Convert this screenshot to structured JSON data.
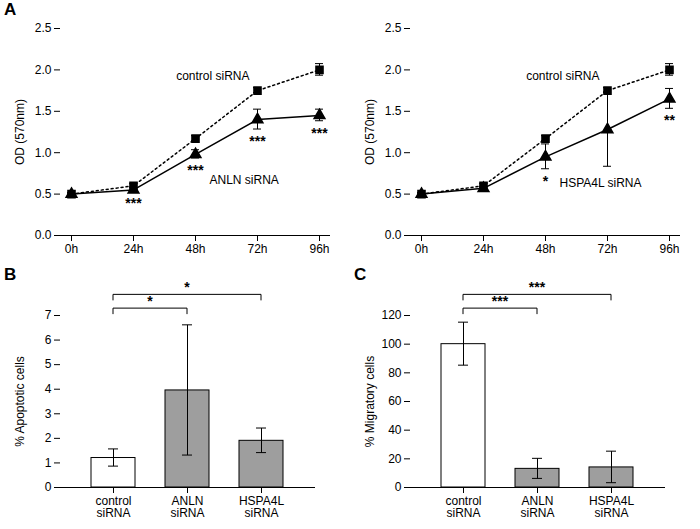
{
  "chart_data": [
    {
      "type": "line",
      "title": "A",
      "y_label": "OD (570nm)",
      "categories": [
        "0h",
        "24h",
        "48h",
        "72h",
        "96h"
      ],
      "ylim": [
        0,
        2.5
      ],
      "yticks": [
        {
          "value": 0,
          "label": "0.0"
        },
        0.5,
        {
          "value": 1,
          "label": "1.0"
        },
        1.5,
        {
          "value": 2,
          "label": "2.0"
        },
        2.5
      ],
      "series": [
        {
          "name": "control siRNA",
          "color": "#000000",
          "line_style": "dotted",
          "marker": "square",
          "values": [
            0.5,
            0.6,
            1.17,
            1.75,
            2.0
          ],
          "errors": [
            0.01,
            0.02,
            0.03,
            0.03,
            0.07
          ]
        },
        {
          "name": "ANLN siRNA",
          "color": "#000000",
          "line_style": "solid",
          "marker": "triangle",
          "values": [
            0.5,
            0.55,
            0.98,
            1.4,
            1.45
          ],
          "errors": [
            0.01,
            0.02,
            0.05,
            0.12,
            0.07
          ],
          "significance": [
            null,
            "***",
            "***",
            "***",
            "***"
          ]
        }
      ]
    },
    {
      "type": "line",
      "y_label": "OD (570nm)",
      "categories": [
        "0h",
        "24h",
        "48h",
        "72h",
        "96h"
      ],
      "ylim": [
        0,
        2.5
      ],
      "yticks": [
        {
          "value": 0,
          "label": "0.0"
        },
        0.5,
        {
          "value": 1,
          "label": "1.0"
        },
        1.5,
        {
          "value": 2,
          "label": "2.0"
        },
        2.5
      ],
      "series": [
        {
          "name": "control siRNA",
          "color": "#000000",
          "line_style": "dotted",
          "marker": "square",
          "values": [
            0.5,
            0.6,
            1.17,
            1.75,
            2.0
          ],
          "errors": [
            0.01,
            0.02,
            0.03,
            0.03,
            0.07
          ]
        },
        {
          "name": "HSPA4L siRNA",
          "color": "#000000",
          "line_style": "solid",
          "marker": "triangle",
          "values": [
            0.5,
            0.57,
            0.95,
            1.28,
            1.65
          ],
          "errors": [
            0.01,
            0.02,
            0.15,
            0.45,
            0.12
          ],
          "significance": [
            null,
            null,
            "*",
            null,
            "**"
          ]
        }
      ]
    },
    {
      "type": "bar",
      "title": "B",
      "y_label": "% Apoptotic cells",
      "categories": [
        "control siRNA",
        "ANLN siRNA",
        "HSPA4L siRNA"
      ],
      "values": [
        1.2,
        3.95,
        1.9
      ],
      "errors": [
        0.35,
        2.65,
        0.5
      ],
      "colors": [
        "#ffffff",
        "#9e9e9e",
        "#9e9e9e"
      ],
      "ylim": [
        0,
        7
      ],
      "yticks": [
        0,
        1,
        2,
        3,
        4,
        5,
        6,
        7
      ],
      "comparisons": [
        {
          "from": "control siRNA",
          "to": "ANLN siRNA",
          "label": "*"
        },
        {
          "from": "control siRNA",
          "to": "HSPA4L siRNA",
          "label": "*"
        }
      ]
    },
    {
      "type": "bar",
      "title": "C",
      "y_label": "% Migratory cells",
      "categories": [
        "control siRNA",
        "ANLN siRNA",
        "HSPA4L siRNA"
      ],
      "values": [
        100,
        13,
        14
      ],
      "errors": [
        15,
        7,
        11
      ],
      "colors": [
        "#ffffff",
        "#9e9e9e",
        "#9e9e9e"
      ],
      "ylim": [
        0,
        120
      ],
      "yticks": [
        0,
        20,
        40,
        60,
        80,
        100,
        120
      ],
      "comparisons": [
        {
          "from": "control siRNA",
          "to": "ANLN siRNA",
          "label": "***"
        },
        {
          "from": "control siRNA",
          "to": "HSPA4L siRNA",
          "label": "***"
        }
      ]
    }
  ]
}
